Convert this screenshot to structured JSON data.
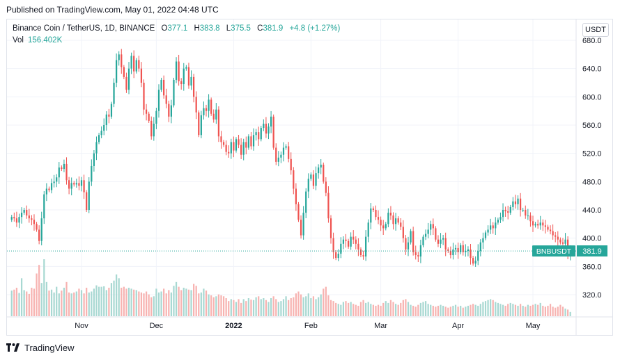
{
  "header": {
    "published": "Published on TradingView.com, May 01, 2022 04:48 UTC"
  },
  "legend": {
    "symbol": "Binance Coin / TetherUS, 1D, BINANCE",
    "o_label": "O",
    "o": "377.1",
    "h_label": "H",
    "h": "383.8",
    "l_label": "L",
    "l": "375.5",
    "c_label": "C",
    "c": "381.9",
    "change": "+4.8 (+1.27%)",
    "vol_label": "Vol",
    "vol": "156.402K"
  },
  "currency_button": "USDT",
  "price_badge": {
    "symbol": "BNBUSDT",
    "price": "381.9"
  },
  "footer": {
    "brand": "TradingView"
  },
  "colors": {
    "up": "#26a69a",
    "down": "#ef5350",
    "up_vol": "#a8d8d2",
    "down_vol": "#f7b3b1",
    "grid": "#f0f3fa"
  },
  "chart_data": {
    "type": "candlestick",
    "y_ticks": [
      "680.0",
      "640.0",
      "600.0",
      "560.0",
      "520.0",
      "480.0",
      "440.0",
      "400.0",
      "360.0",
      "320.0"
    ],
    "x_ticks": [
      {
        "label": "Nov",
        "date": "2021-11-01"
      },
      {
        "label": "Dec",
        "date": "2021-12-01"
      },
      {
        "label": "2022",
        "date": "2022-01-01"
      },
      {
        "label": "Feb",
        "date": "2022-02-01"
      },
      {
        "label": "Mar",
        "date": "2022-03-01"
      },
      {
        "label": "Apr",
        "date": "2022-04-01"
      },
      {
        "label": "May",
        "date": "2022-05-01"
      }
    ],
    "start_date": "2021-10-04",
    "ylim": [
      296,
      690
    ],
    "closes": [
      430,
      428,
      422,
      430,
      436,
      440,
      432,
      428,
      426,
      420,
      412,
      396,
      428,
      462,
      470,
      468,
      478,
      480,
      486,
      500,
      498,
      505,
      482,
      470,
      478,
      476,
      478,
      474,
      482,
      465,
      440,
      480,
      502,
      520,
      536,
      546,
      552,
      560,
      575,
      572,
      590,
      620,
      652,
      660,
      642,
      628,
      610,
      640,
      658,
      636,
      652,
      640,
      620,
      582,
      576,
      566,
      544,
      562,
      580,
      610,
      624,
      602,
      590,
      572,
      588,
      624,
      650,
      622,
      618,
      640,
      642,
      616,
      628,
      600,
      578,
      546,
      574,
      584,
      580,
      596,
      576,
      568,
      582,
      544,
      536,
      532,
      522,
      520,
      536,
      524,
      540,
      532,
      518,
      536,
      528,
      544,
      530,
      546,
      550,
      540,
      556,
      562,
      548,
      558,
      572,
      528,
      508,
      514,
      518,
      528,
      530,
      512,
      496,
      470,
      448,
      426,
      404,
      436,
      466,
      484,
      490,
      474,
      492,
      500,
      504,
      480,
      464,
      428,
      400,
      380,
      372,
      378,
      392,
      398,
      396,
      388,
      402,
      398,
      392,
      384,
      376,
      374,
      402,
      422,
      442,
      440,
      430,
      426,
      418,
      414,
      420,
      436,
      432,
      420,
      428,
      422,
      416,
      400,
      384,
      394,
      410,
      380,
      376,
      374,
      390,
      402,
      406,
      412,
      420,
      414,
      398,
      392,
      398,
      400,
      384,
      382,
      376,
      384,
      386,
      380,
      390,
      380,
      382,
      384,
      372,
      364,
      368,
      382,
      394,
      400,
      408,
      412,
      418,
      414,
      422,
      426,
      430,
      440,
      438,
      436,
      444,
      452,
      448,
      456,
      440,
      440,
      432,
      432,
      424,
      418,
      420,
      418,
      422,
      418,
      416,
      412,
      410,
      404,
      402,
      398,
      394,
      392,
      398,
      378,
      382
    ],
    "volumes": [
      54,
      56,
      60,
      49,
      80,
      55,
      52,
      47,
      60,
      58,
      90,
      108,
      70,
      120,
      72,
      54,
      56,
      50,
      62,
      48,
      54,
      60,
      72,
      50,
      48,
      50,
      52,
      58,
      55,
      48,
      60,
      50,
      52,
      58,
      65,
      62,
      62,
      63,
      55,
      60,
      70,
      75,
      88,
      80,
      60,
      62,
      58,
      60,
      58,
      56,
      55,
      52,
      50,
      48,
      52,
      46,
      40,
      42,
      58,
      50,
      52,
      58,
      48,
      55,
      50,
      64,
      72,
      62,
      55,
      60,
      58,
      56,
      55,
      68,
      64,
      48,
      50,
      58,
      54,
      46,
      44,
      40,
      42,
      46,
      44,
      42,
      38,
      32,
      36,
      34,
      30,
      36,
      28,
      36,
      32,
      38,
      35,
      34,
      40,
      42,
      36,
      38,
      34,
      30,
      38,
      42,
      36,
      30,
      32,
      36,
      42,
      34,
      38,
      40,
      48,
      52,
      46,
      40,
      42,
      48,
      38,
      42,
      36,
      40,
      46,
      58,
      62,
      44,
      34,
      32,
      28,
      26,
      24,
      30,
      32,
      28,
      30,
      26,
      24,
      22,
      30,
      34,
      28,
      30,
      26,
      24,
      22,
      24,
      22,
      28,
      32,
      28,
      34,
      30,
      26,
      24,
      28,
      34,
      36,
      30,
      24,
      22,
      20,
      24,
      28,
      30,
      32,
      26,
      24,
      22,
      20,
      22,
      24,
      22,
      20,
      18,
      20,
      22,
      24,
      20,
      22,
      18,
      20,
      22,
      24,
      26,
      24,
      22,
      26,
      30,
      32,
      34,
      36,
      34,
      30,
      28,
      26,
      24,
      22,
      26,
      28,
      26,
      24,
      22,
      26,
      22,
      20,
      24,
      22,
      24,
      26,
      24,
      28,
      22,
      20,
      22,
      26,
      20,
      18,
      20,
      24,
      20,
      16,
      14,
      9
    ]
  }
}
